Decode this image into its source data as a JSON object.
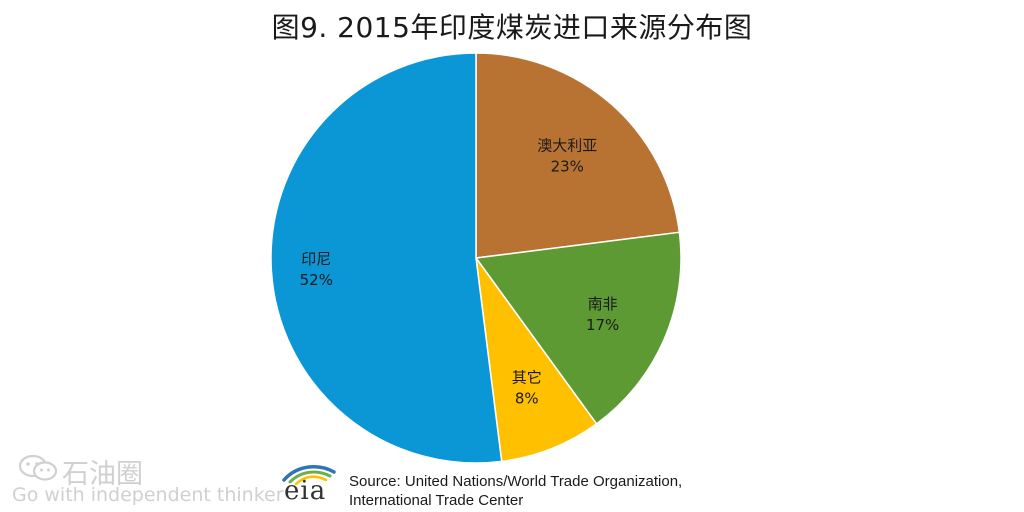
{
  "chart_data": {
    "type": "pie",
    "title": "图9. 2015年印度煤炭进口来源分布图",
    "slices": [
      {
        "label": "澳大利亚",
        "value": 23,
        "value_label": "23%",
        "color": "#b87333"
      },
      {
        "label": "南非",
        "value": 17,
        "value_label": "17%",
        "color": "#5e9a33"
      },
      {
        "label": "其它",
        "value": 8,
        "value_label": "8%",
        "color": "#ffc000"
      },
      {
        "label": "印尼",
        "value": 52,
        "value_label": "52%",
        "color": "#0b96d6"
      }
    ],
    "start": "12 o'clock",
    "direction": "clockwise",
    "legend": "none"
  },
  "source": {
    "line1": "Source: United Nations/World Trade Organization,",
    "line2": "International Trade Center"
  },
  "logo": {
    "text": "eia",
    "icon": "eia-swoosh-logo"
  },
  "watermark": {
    "name": "石油圈",
    "slogan": "Go with independent thinker",
    "icon": "wechat-icon"
  }
}
